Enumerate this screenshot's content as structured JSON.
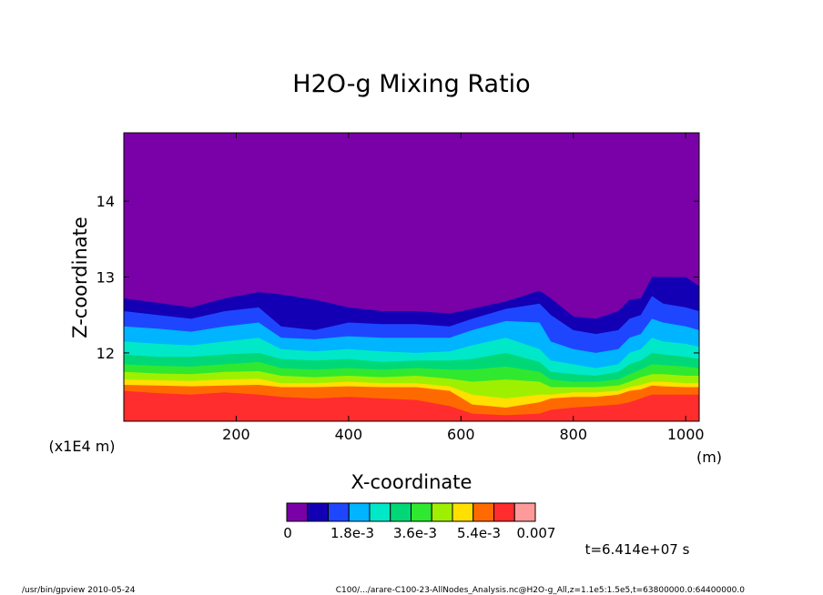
{
  "chart_data": {
    "type": "heatmap",
    "title": "H2O-g Mixing Ratio",
    "xlabel": "X-coordinate",
    "ylabel": "Z-coordinate",
    "x_unit": "(m)",
    "y_unit": "(x1E4 m)",
    "xlim": [
      0,
      1024
    ],
    "ylim": [
      11.1,
      14.9
    ],
    "x_ticks": [
      200,
      400,
      600,
      800,
      1000
    ],
    "y_ticks": [
      12,
      13,
      14
    ],
    "grid": false,
    "colorbar": {
      "colors": [
        "#7a00a8",
        "#1400b4",
        "#1e46ff",
        "#00b4ff",
        "#00e8c8",
        "#00d878",
        "#30e830",
        "#9ff000",
        "#ffe000",
        "#ff6a00",
        "#ff2d2d",
        "#ff9a9a"
      ],
      "labels": [
        "0",
        "1.8e-3",
        "3.6e-3",
        "5.4e-3",
        "0.007"
      ]
    },
    "contour_boundaries": {
      "x": [
        0,
        60,
        120,
        180,
        240,
        280,
        340,
        400,
        460,
        520,
        580,
        620,
        680,
        740,
        760,
        800,
        840,
        880,
        900,
        920,
        940,
        960,
        1000,
        1024
      ],
      "levels": [
        [
          12.72,
          12.66,
          12.6,
          12.72,
          12.8,
          12.77,
          12.7,
          12.6,
          12.55,
          12.55,
          12.52,
          12.58,
          12.68,
          12.82,
          12.72,
          12.48,
          12.45,
          12.55,
          12.7,
          12.72,
          13.0,
          13.0,
          13.0,
          12.88
        ],
        [
          12.55,
          12.5,
          12.45,
          12.55,
          12.6,
          12.35,
          12.3,
          12.4,
          12.38,
          12.38,
          12.35,
          12.45,
          12.58,
          12.65,
          12.5,
          12.3,
          12.25,
          12.3,
          12.45,
          12.5,
          12.75,
          12.65,
          12.6,
          12.55
        ],
        [
          12.35,
          12.32,
          12.28,
          12.35,
          12.4,
          12.2,
          12.18,
          12.22,
          12.2,
          12.2,
          12.2,
          12.3,
          12.42,
          12.4,
          12.15,
          12.05,
          12.0,
          12.05,
          12.2,
          12.25,
          12.45,
          12.4,
          12.35,
          12.3
        ],
        [
          12.15,
          12.12,
          12.1,
          12.15,
          12.2,
          12.05,
          12.02,
          12.05,
          12.02,
          12.0,
          12.02,
          12.1,
          12.2,
          12.05,
          11.9,
          11.85,
          11.8,
          11.85,
          12.0,
          12.05,
          12.2,
          12.15,
          12.12,
          12.08
        ],
        [
          11.98,
          11.95,
          11.95,
          11.98,
          12.0,
          11.92,
          11.9,
          11.92,
          11.88,
          11.9,
          11.9,
          11.92,
          12.0,
          11.88,
          11.75,
          11.72,
          11.7,
          11.75,
          11.85,
          11.9,
          12.0,
          11.98,
          11.95,
          11.92
        ],
        [
          11.85,
          11.83,
          11.82,
          11.85,
          11.88,
          11.8,
          11.78,
          11.8,
          11.78,
          11.8,
          11.78,
          11.78,
          11.82,
          11.75,
          11.65,
          11.62,
          11.62,
          11.65,
          11.72,
          11.78,
          11.85,
          11.84,
          11.82,
          11.8
        ],
        [
          11.75,
          11.73,
          11.72,
          11.75,
          11.76,
          11.7,
          11.68,
          11.7,
          11.68,
          11.7,
          11.66,
          11.62,
          11.65,
          11.62,
          11.55,
          11.55,
          11.55,
          11.57,
          11.62,
          11.68,
          11.72,
          11.72,
          11.7,
          11.7
        ],
        [
          11.65,
          11.64,
          11.63,
          11.65,
          11.66,
          11.6,
          11.6,
          11.62,
          11.6,
          11.6,
          11.56,
          11.45,
          11.4,
          11.45,
          11.45,
          11.48,
          11.48,
          11.5,
          11.55,
          11.58,
          11.62,
          11.62,
          11.6,
          11.6
        ],
        [
          11.58,
          11.57,
          11.56,
          11.57,
          11.58,
          11.55,
          11.55,
          11.56,
          11.55,
          11.55,
          11.5,
          11.32,
          11.28,
          11.35,
          11.4,
          11.42,
          11.42,
          11.45,
          11.5,
          11.52,
          11.57,
          11.56,
          11.55,
          11.55
        ],
        [
          11.5,
          11.47,
          11.45,
          11.48,
          11.45,
          11.42,
          11.4,
          11.42,
          11.4,
          11.38,
          11.3,
          11.2,
          11.18,
          11.2,
          11.25,
          11.28,
          11.3,
          11.32,
          11.35,
          11.4,
          11.45,
          11.45,
          11.45,
          11.45
        ]
      ]
    }
  },
  "time_label": "t=6.414e+07 s",
  "footer_left": "/usr/bin/gpview   2010-05-24",
  "footer_right": "C100/.../arare-C100-23-AllNodes_Analysis.nc@H2O-g_All,z=1.1e5:1.5e5,t=63800000.0:64400000.0"
}
